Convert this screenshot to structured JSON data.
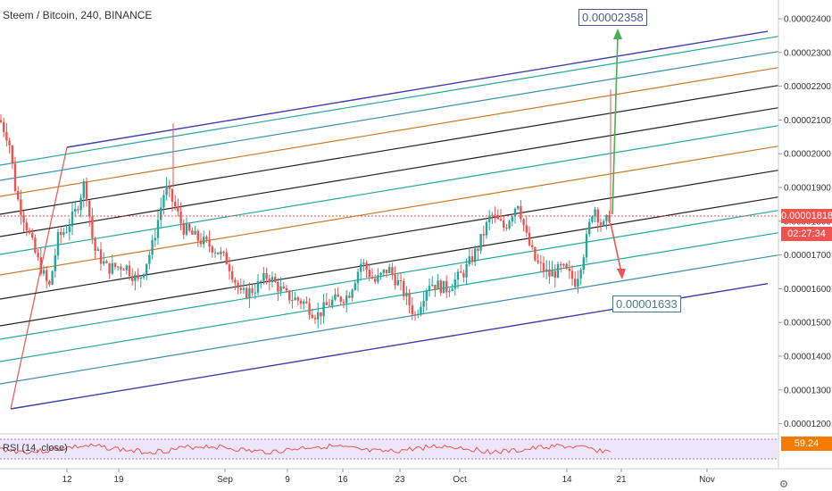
{
  "header": {
    "title": "Steem / Bitcoin, 240, BINANCE"
  },
  "chart_data": {
    "type": "candlestick",
    "symbol": "Steem / Bitcoin",
    "interval": "240",
    "exchange": "BINANCE",
    "y_ticks": [
      "0.00001200",
      "0.00001300",
      "0.00001400",
      "0.00001500",
      "0.00001600",
      "0.00001700",
      "0.00001800",
      "0.00001900",
      "0.00002000",
      "0.00002100",
      "0.00002200",
      "0.00002300",
      "0.00002400"
    ],
    "x_ticks": [
      "12",
      "19",
      "Sep",
      "9",
      "16",
      "23",
      "Oct",
      "14",
      "21",
      "Nov"
    ],
    "last_price": "0.00001818",
    "countdown": "02:27:34",
    "rsi": {
      "label": "RSI (14, close)",
      "value": "59.24"
    },
    "annotations": {
      "target_high": "0.00002358",
      "target_low": "0.00001633"
    },
    "colors": {
      "up": "#26a69a",
      "down": "#ef5350",
      "price_badge": "#ef5350",
      "timer_badge": "#ef5350",
      "rsi_badge": "#f57c00",
      "fork_outer": "#3f3fa8",
      "fork_teal": "#26a69a",
      "fork_blue": "#3a8fa8",
      "fork_black": "#222222",
      "fork_orange": "#c67a2a",
      "arrow_up": "#4caf50",
      "arrow_down": "#ef5350"
    }
  }
}
